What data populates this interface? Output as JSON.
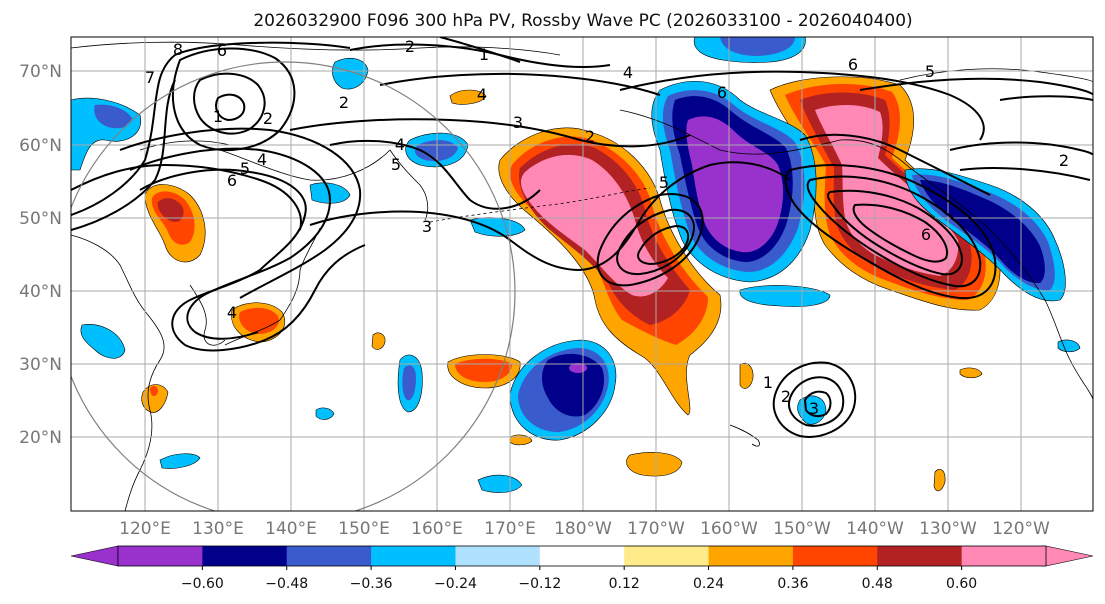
{
  "title": "2026032900 F096 300 hPa PV, Rossby Wave PC (2026033100 - 2026040400)",
  "axes": {
    "lat_labels": [
      "70°N",
      "60°N",
      "50°N",
      "40°N",
      "30°N",
      "20°N"
    ],
    "lon_labels": [
      "120°E",
      "130°E",
      "140°E",
      "150°E",
      "160°E",
      "170°E",
      "180°W",
      "170°W",
      "160°W",
      "150°W",
      "140°W",
      "130°W",
      "120°W"
    ]
  },
  "contour_labels": [
    {
      "id": "c8",
      "text": "8"
    },
    {
      "id": "c6a",
      "text": "6"
    },
    {
      "id": "c7",
      "text": "7"
    },
    {
      "id": "c2a",
      "text": "2"
    },
    {
      "id": "c1a",
      "text": "1"
    },
    {
      "id": "c2b",
      "text": "2"
    },
    {
      "id": "c4a",
      "text": "4"
    },
    {
      "id": "c2c",
      "text": "2"
    },
    {
      "id": "c3a",
      "text": "3"
    },
    {
      "id": "c1b",
      "text": "1"
    },
    {
      "id": "c4b",
      "text": "4"
    },
    {
      "id": "c6b",
      "text": "6"
    },
    {
      "id": "c5a",
      "text": "5"
    },
    {
      "id": "c4c",
      "text": "4"
    },
    {
      "id": "c5b",
      "text": "5"
    },
    {
      "id": "c3b",
      "text": "3"
    },
    {
      "id": "c4d",
      "text": "4"
    },
    {
      "id": "c2d",
      "text": "2"
    },
    {
      "id": "c6c",
      "text": "6"
    },
    {
      "id": "c5c",
      "text": "5"
    },
    {
      "id": "c6d",
      "text": "6"
    },
    {
      "id": "c5d",
      "text": "5"
    },
    {
      "id": "c2e",
      "text": "2"
    },
    {
      "id": "c6e",
      "text": "6"
    },
    {
      "id": "c1c",
      "text": "1"
    },
    {
      "id": "c2f",
      "text": "2"
    },
    {
      "id": "c3c",
      "text": "3"
    },
    {
      "id": "c4e",
      "text": "4"
    }
  ],
  "colorbar": {
    "ticks": [
      "−0.60",
      "−0.48",
      "−0.36",
      "−0.24",
      "−0.12",
      "0.12",
      "0.24",
      "0.36",
      "0.48",
      "0.60"
    ],
    "colors": [
      "#9932cc",
      "#00008b",
      "#3a5bcc",
      "#00bfff",
      "#b0e2ff",
      "#ffffff",
      "#ffeb8a",
      "#ffa500",
      "#ff4500",
      "#b22222",
      "#ff88b4"
    ]
  },
  "colors": {
    "purple": "#9932cc",
    "navy": "#00008b",
    "royal": "#3a5bcc",
    "sky": "#00bfff",
    "pale": "#b0e2ff",
    "yellow": "#ffeb8a",
    "orange": "#ffa500",
    "red": "#ff4500",
    "crimson": "#b22222",
    "pink": "#ff88b4"
  }
}
